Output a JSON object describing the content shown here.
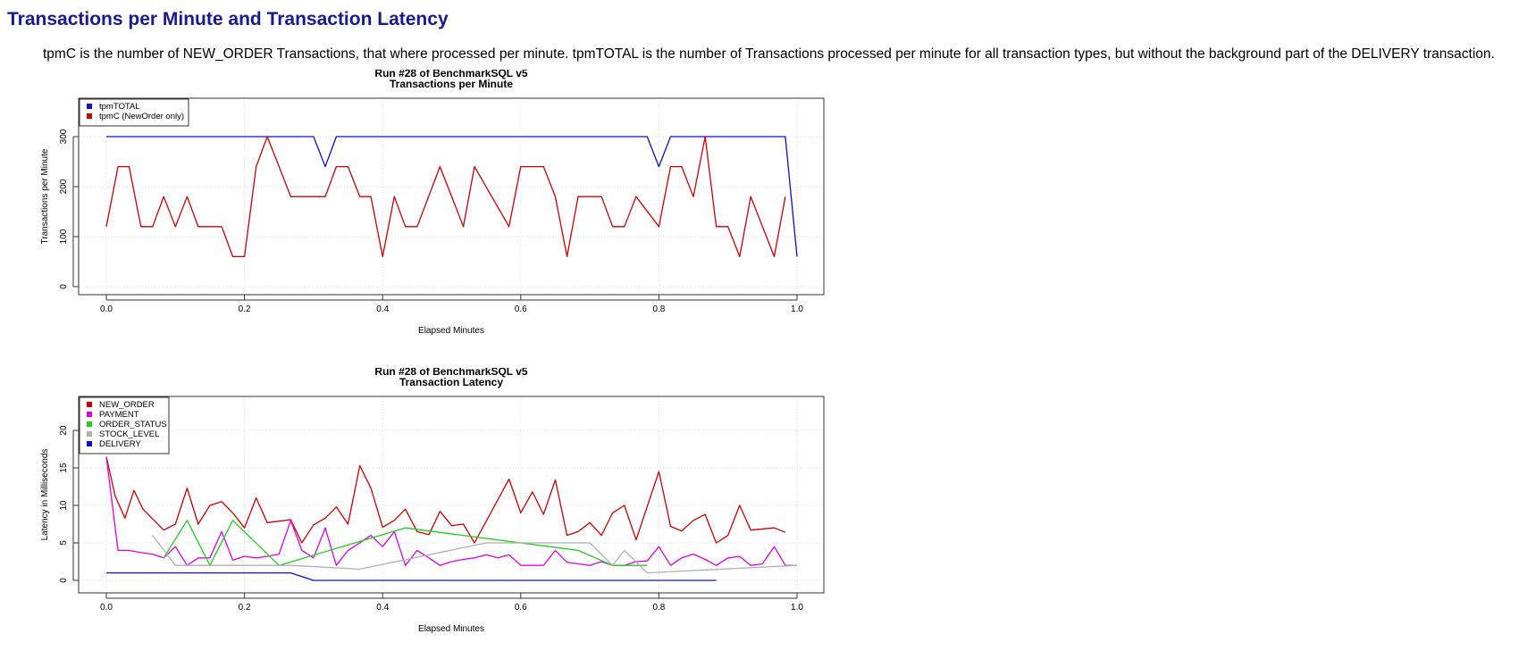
{
  "page": {
    "title": "Transactions per Minute and Transaction Latency",
    "description": "tpmC is the number of NEW_ORDER Transactions, that where processed per minute. tpmTOTAL is the number of Transactions processed per minute for all transaction types, but without the background part of the DELIVERY transaction."
  },
  "colors": {
    "title": "#1a1a8f",
    "new_order": "#cc0000",
    "payment": "#e000e0",
    "order_status": "#20cc20",
    "stock_level": "#b0b0b0",
    "delivery": "#1010cc",
    "tpm_total": "#1010cc",
    "tpm_c": "#cc0000",
    "grid": "#e0e0e0"
  },
  "chart_data": [
    {
      "type": "line",
      "title": "Run #28 of BenchmarkSQL v5",
      "subtitle": "Transactions per Minute",
      "xlabel": "Elapsed Minutes",
      "ylabel": "Transactions per Minute",
      "xlim": [
        0,
        1.0
      ],
      "ylim": [
        0,
        300
      ],
      "xticks": [
        "0.0",
        "0.2",
        "0.4",
        "0.6",
        "0.8",
        "1.0"
      ],
      "yticks": [
        "0",
        "100",
        "200",
        "300"
      ],
      "grid": true,
      "legend_position": "top-left",
      "series": [
        {
          "name": "tpmTOTAL",
          "color": "#1010cc",
          "points": [
            [
              0,
              300
            ],
            [
              0.3,
              300
            ],
            [
              0.317,
              240
            ],
            [
              0.333,
              300
            ],
            [
              0.783,
              300
            ],
            [
              0.8,
              240
            ],
            [
              0.817,
              300
            ],
            [
              0.983,
              300
            ],
            [
              1.0,
              60
            ]
          ]
        },
        {
          "name": "tpmC (NewOrder only)",
          "color": "#cc0000",
          "points": [
            [
              0,
              120
            ],
            [
              0.017,
              240
            ],
            [
              0.033,
              240
            ],
            [
              0.05,
              120
            ],
            [
              0.067,
              120
            ],
            [
              0.083,
              180
            ],
            [
              0.1,
              120
            ],
            [
              0.117,
              180
            ],
            [
              0.133,
              120
            ],
            [
              0.15,
              120
            ],
            [
              0.167,
              120
            ],
            [
              0.183,
              60
            ],
            [
              0.2,
              60
            ],
            [
              0.217,
              240
            ],
            [
              0.233,
              300
            ],
            [
              0.25,
              240
            ],
            [
              0.267,
              180
            ],
            [
              0.283,
              180
            ],
            [
              0.3,
              180
            ],
            [
              0.317,
              180
            ],
            [
              0.333,
              240
            ],
            [
              0.35,
              240
            ],
            [
              0.367,
              180
            ],
            [
              0.383,
              180
            ],
            [
              0.4,
              60
            ],
            [
              0.417,
              180
            ],
            [
              0.433,
              120
            ],
            [
              0.45,
              120
            ],
            [
              0.483,
              240
            ],
            [
              0.517,
              120
            ],
            [
              0.533,
              240
            ],
            [
              0.583,
              120
            ],
            [
              0.6,
              240
            ],
            [
              0.617,
              240
            ],
            [
              0.633,
              240
            ],
            [
              0.65,
              180
            ],
            [
              0.667,
              60
            ],
            [
              0.683,
              180
            ],
            [
              0.7,
              180
            ],
            [
              0.717,
              180
            ],
            [
              0.733,
              120
            ],
            [
              0.75,
              120
            ],
            [
              0.767,
              180
            ],
            [
              0.8,
              120
            ],
            [
              0.817,
              240
            ],
            [
              0.833,
              240
            ],
            [
              0.85,
              180
            ],
            [
              0.867,
              300
            ],
            [
              0.883,
              120
            ],
            [
              0.9,
              120
            ],
            [
              0.917,
              60
            ],
            [
              0.933,
              180
            ],
            [
              0.967,
              60
            ],
            [
              0.983,
              180
            ]
          ]
        }
      ]
    },
    {
      "type": "line",
      "title": "Run #28 of BenchmarkSQL v5",
      "subtitle": "Transaction Latency",
      "xlabel": "Elapsed Minutes",
      "ylabel": "Latency in Milliseconds",
      "xlim": [
        0,
        1.0
      ],
      "ylim": [
        0,
        20
      ],
      "xticks": [
        "0.0",
        "0.2",
        "0.4",
        "0.6",
        "0.8",
        "1.0"
      ],
      "yticks": [
        "0",
        "5",
        "10",
        "15",
        "20"
      ],
      "grid": true,
      "legend_position": "top-left",
      "series": [
        {
          "name": "NEW_ORDER",
          "color": "#cc0000",
          "points": [
            [
              0,
              16.5
            ],
            [
              0.013,
              11.2
            ],
            [
              0.027,
              8.3
            ],
            [
              0.04,
              12
            ],
            [
              0.053,
              9.5
            ],
            [
              0.083,
              6.7
            ],
            [
              0.1,
              7.5
            ],
            [
              0.117,
              12.3
            ],
            [
              0.133,
              7.5
            ],
            [
              0.15,
              10
            ],
            [
              0.167,
              10.5
            ],
            [
              0.183,
              9
            ],
            [
              0.2,
              7
            ],
            [
              0.217,
              11
            ],
            [
              0.233,
              7.7
            ],
            [
              0.267,
              8.1
            ],
            [
              0.283,
              5
            ],
            [
              0.3,
              7.4
            ],
            [
              0.317,
              8.3
            ],
            [
              0.333,
              9.8
            ],
            [
              0.35,
              7.5
            ],
            [
              0.367,
              15.3
            ],
            [
              0.383,
              12.3
            ],
            [
              0.4,
              7.1
            ],
            [
              0.417,
              8
            ],
            [
              0.433,
              9.5
            ],
            [
              0.45,
              6.5
            ],
            [
              0.467,
              6.1
            ],
            [
              0.483,
              9.2
            ],
            [
              0.5,
              7.3
            ],
            [
              0.517,
              7.5
            ],
            [
              0.533,
              5
            ],
            [
              0.583,
              13.5
            ],
            [
              0.6,
              9
            ],
            [
              0.617,
              11.8
            ],
            [
              0.633,
              8.8
            ],
            [
              0.65,
              13.4
            ],
            [
              0.667,
              6
            ],
            [
              0.683,
              6.5
            ],
            [
              0.7,
              7.7
            ],
            [
              0.717,
              6
            ],
            [
              0.733,
              9
            ],
            [
              0.75,
              10
            ],
            [
              0.767,
              5.4
            ],
            [
              0.8,
              14.5
            ],
            [
              0.817,
              7.2
            ],
            [
              0.833,
              6.6
            ],
            [
              0.85,
              8
            ],
            [
              0.867,
              8.8
            ],
            [
              0.883,
              5
            ],
            [
              0.9,
              6
            ],
            [
              0.917,
              10
            ],
            [
              0.933,
              6.7
            ],
            [
              0.967,
              7
            ],
            [
              0.983,
              6.4
            ]
          ]
        },
        {
          "name": "PAYMENT",
          "color": "#e000e0",
          "points": [
            [
              0,
              16.5
            ],
            [
              0.017,
              4
            ],
            [
              0.033,
              4
            ],
            [
              0.05,
              3.7
            ],
            [
              0.067,
              3.5
            ],
            [
              0.083,
              3
            ],
            [
              0.1,
              4.5
            ],
            [
              0.117,
              2
            ],
            [
              0.133,
              3
            ],
            [
              0.15,
              3
            ],
            [
              0.167,
              6.5
            ],
            [
              0.183,
              2.7
            ],
            [
              0.2,
              3.2
            ],
            [
              0.217,
              3
            ],
            [
              0.233,
              3.2
            ],
            [
              0.25,
              3.5
            ],
            [
              0.267,
              8
            ],
            [
              0.283,
              4
            ],
            [
              0.3,
              3
            ],
            [
              0.317,
              7
            ],
            [
              0.333,
              2
            ],
            [
              0.35,
              4
            ],
            [
              0.367,
              5
            ],
            [
              0.383,
              6
            ],
            [
              0.4,
              4.5
            ],
            [
              0.417,
              6.5
            ],
            [
              0.433,
              2
            ],
            [
              0.45,
              4
            ],
            [
              0.467,
              3
            ],
            [
              0.483,
              2
            ],
            [
              0.5,
              2.5
            ],
            [
              0.517,
              2.8
            ],
            [
              0.533,
              3
            ],
            [
              0.55,
              3.4
            ],
            [
              0.567,
              3
            ],
            [
              0.583,
              3.4
            ],
            [
              0.6,
              2
            ],
            [
              0.617,
              2
            ],
            [
              0.633,
              2
            ],
            [
              0.65,
              4
            ],
            [
              0.667,
              2.4
            ],
            [
              0.683,
              2.2
            ],
            [
              0.7,
              2
            ],
            [
              0.717,
              2.5
            ],
            [
              0.733,
              2
            ],
            [
              0.75,
              2
            ],
            [
              0.767,
              2.5
            ],
            [
              0.783,
              2.6
            ],
            [
              0.8,
              4.5
            ],
            [
              0.817,
              2
            ],
            [
              0.833,
              3
            ],
            [
              0.85,
              3.5
            ],
            [
              0.867,
              2.8
            ],
            [
              0.883,
              2
            ],
            [
              0.9,
              3
            ],
            [
              0.917,
              3.2
            ],
            [
              0.933,
              2
            ],
            [
              0.95,
              2.2
            ],
            [
              0.967,
              4.5
            ],
            [
              0.983,
              2
            ],
            [
              1.0,
              2
            ]
          ]
        },
        {
          "name": "ORDER_STATUS",
          "color": "#20cc20",
          "points": [
            [
              0.083,
              3
            ],
            [
              0.117,
              8
            ],
            [
              0.15,
              2
            ],
            [
              0.183,
              8
            ],
            [
              0.25,
              2
            ],
            [
              0.433,
              7
            ],
            [
              0.683,
              4
            ],
            [
              0.733,
              2
            ],
            [
              0.783,
              2
            ]
          ]
        },
        {
          "name": "STOCK_LEVEL",
          "color": "#b0b0b0",
          "points": [
            [
              0.067,
              6
            ],
            [
              0.1,
              2
            ],
            [
              0.15,
              2
            ],
            [
              0.267,
              2
            ],
            [
              0.367,
              1.5
            ],
            [
              0.55,
              5
            ],
            [
              0.7,
              5
            ],
            [
              0.733,
              2
            ],
            [
              0.75,
              4
            ],
            [
              0.783,
              1
            ],
            [
              1.0,
              2
            ]
          ]
        },
        {
          "name": "DELIVERY",
          "color": "#1010cc",
          "points": [
            [
              0,
              1
            ],
            [
              0.267,
              1
            ],
            [
              0.3,
              0
            ],
            [
              0.883,
              0
            ]
          ]
        }
      ]
    }
  ]
}
